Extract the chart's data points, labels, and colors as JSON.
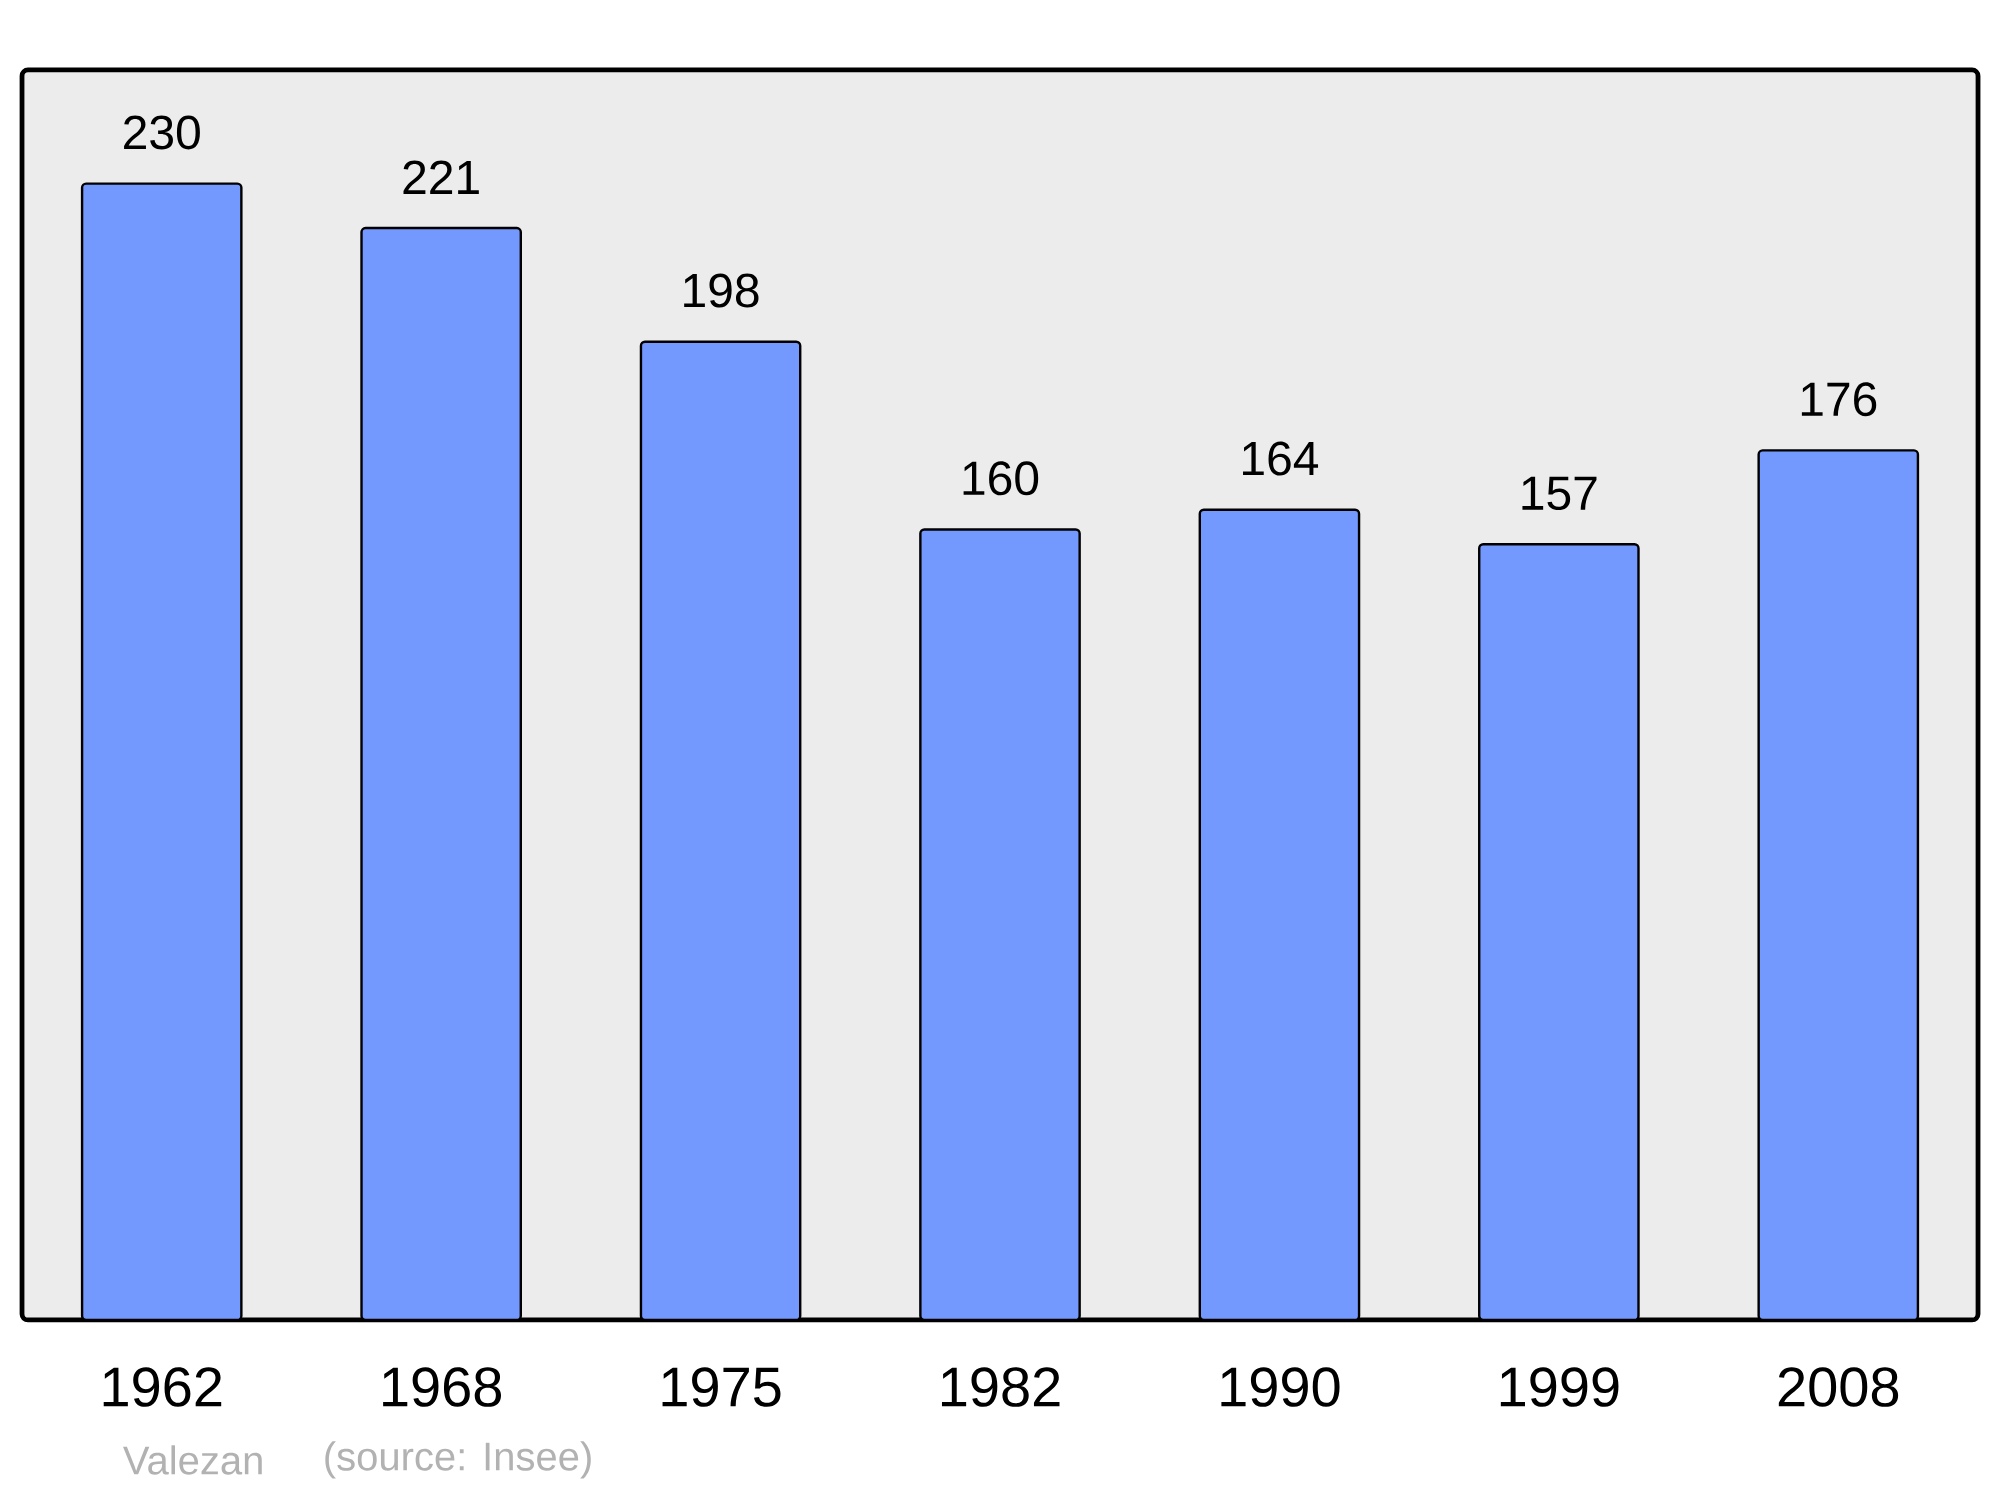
{
  "chart_data": {
    "type": "bar",
    "categories": [
      "1962",
      "1968",
      "1975",
      "1982",
      "1990",
      "1999",
      "2008"
    ],
    "values": [
      230,
      221,
      198,
      160,
      164,
      157,
      176
    ],
    "color": "#7399ff",
    "data_labels": true,
    "annotations": [
      "Valezan",
      "(source: Insee)"
    ]
  }
}
